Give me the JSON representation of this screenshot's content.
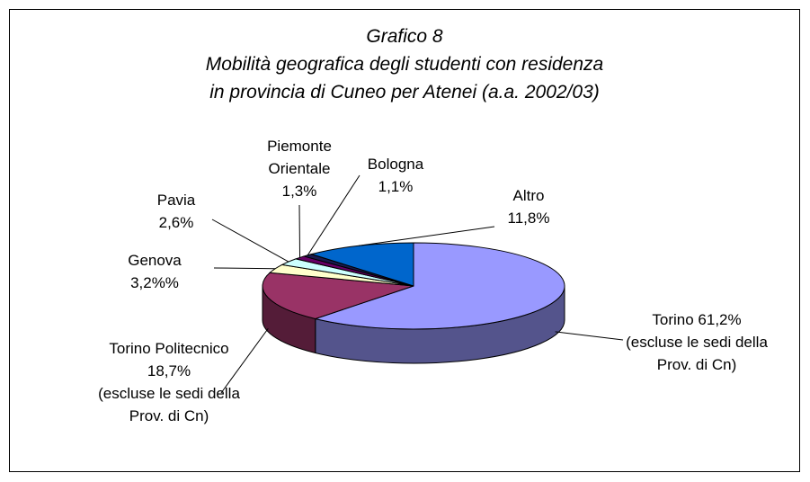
{
  "chart_data": {
    "type": "pie",
    "title": [
      "Grafico 8",
      "Mobilità geografica degli studenti con residenza",
      "in provincia di Cuneo per Atenei (a.a. 2002/03)"
    ],
    "categories": [
      "Torino",
      "Torino Politecnico",
      "Genova",
      "Pavia",
      "Piemonte Orientale",
      "Bologna",
      "Altro"
    ],
    "values": [
      61.2,
      18.7,
      3.2,
      2.6,
      1.3,
      1.1,
      11.8
    ],
    "value_labels": [
      "61,2%",
      "18,7%",
      "3,2%%",
      "2,6%",
      "1,3%",
      "1,1%",
      "11,8%"
    ],
    "notes": [
      "(escluse le sedi della Prov. di Cn)",
      "(escluse le sedi della Prov. di Cn)"
    ],
    "colors": [
      "#9999ff",
      "#993366",
      "#ffffcc",
      "#ccffff",
      "#660066",
      "#1a1a4d",
      "#0066cc"
    ]
  }
}
